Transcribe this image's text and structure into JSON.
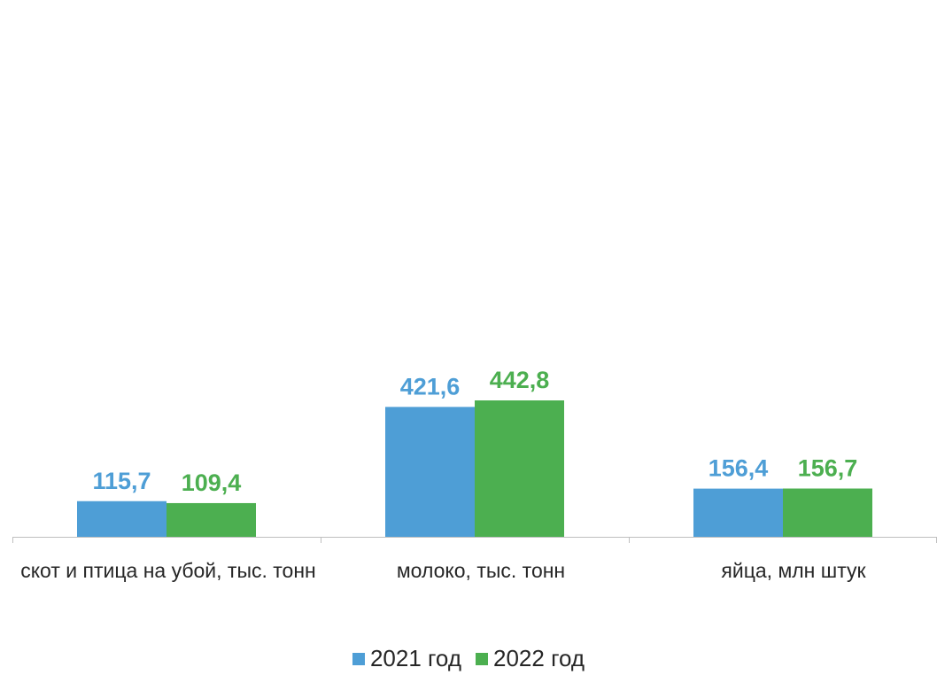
{
  "chart_data": {
    "type": "bar",
    "categories": [
      "скот и птица на убой, тыс. тонн",
      "молоко, тыс. тонн",
      "яйца, млн штук"
    ],
    "series": [
      {
        "name": "2021 год",
        "values": [
          115.7,
          421.6,
          156.4
        ],
        "labels": [
          "115,7",
          "421,6",
          "156,4"
        ],
        "color": "#4e9ed6"
      },
      {
        "name": "2022 год",
        "values": [
          109.4,
          442.8,
          156.7
        ],
        "labels": [
          "109,4",
          "442,8",
          "156,7"
        ],
        "color": "#4caf50"
      }
    ],
    "ylim": [
      0,
      470
    ],
    "grid": false,
    "legend_position": "bottom"
  }
}
